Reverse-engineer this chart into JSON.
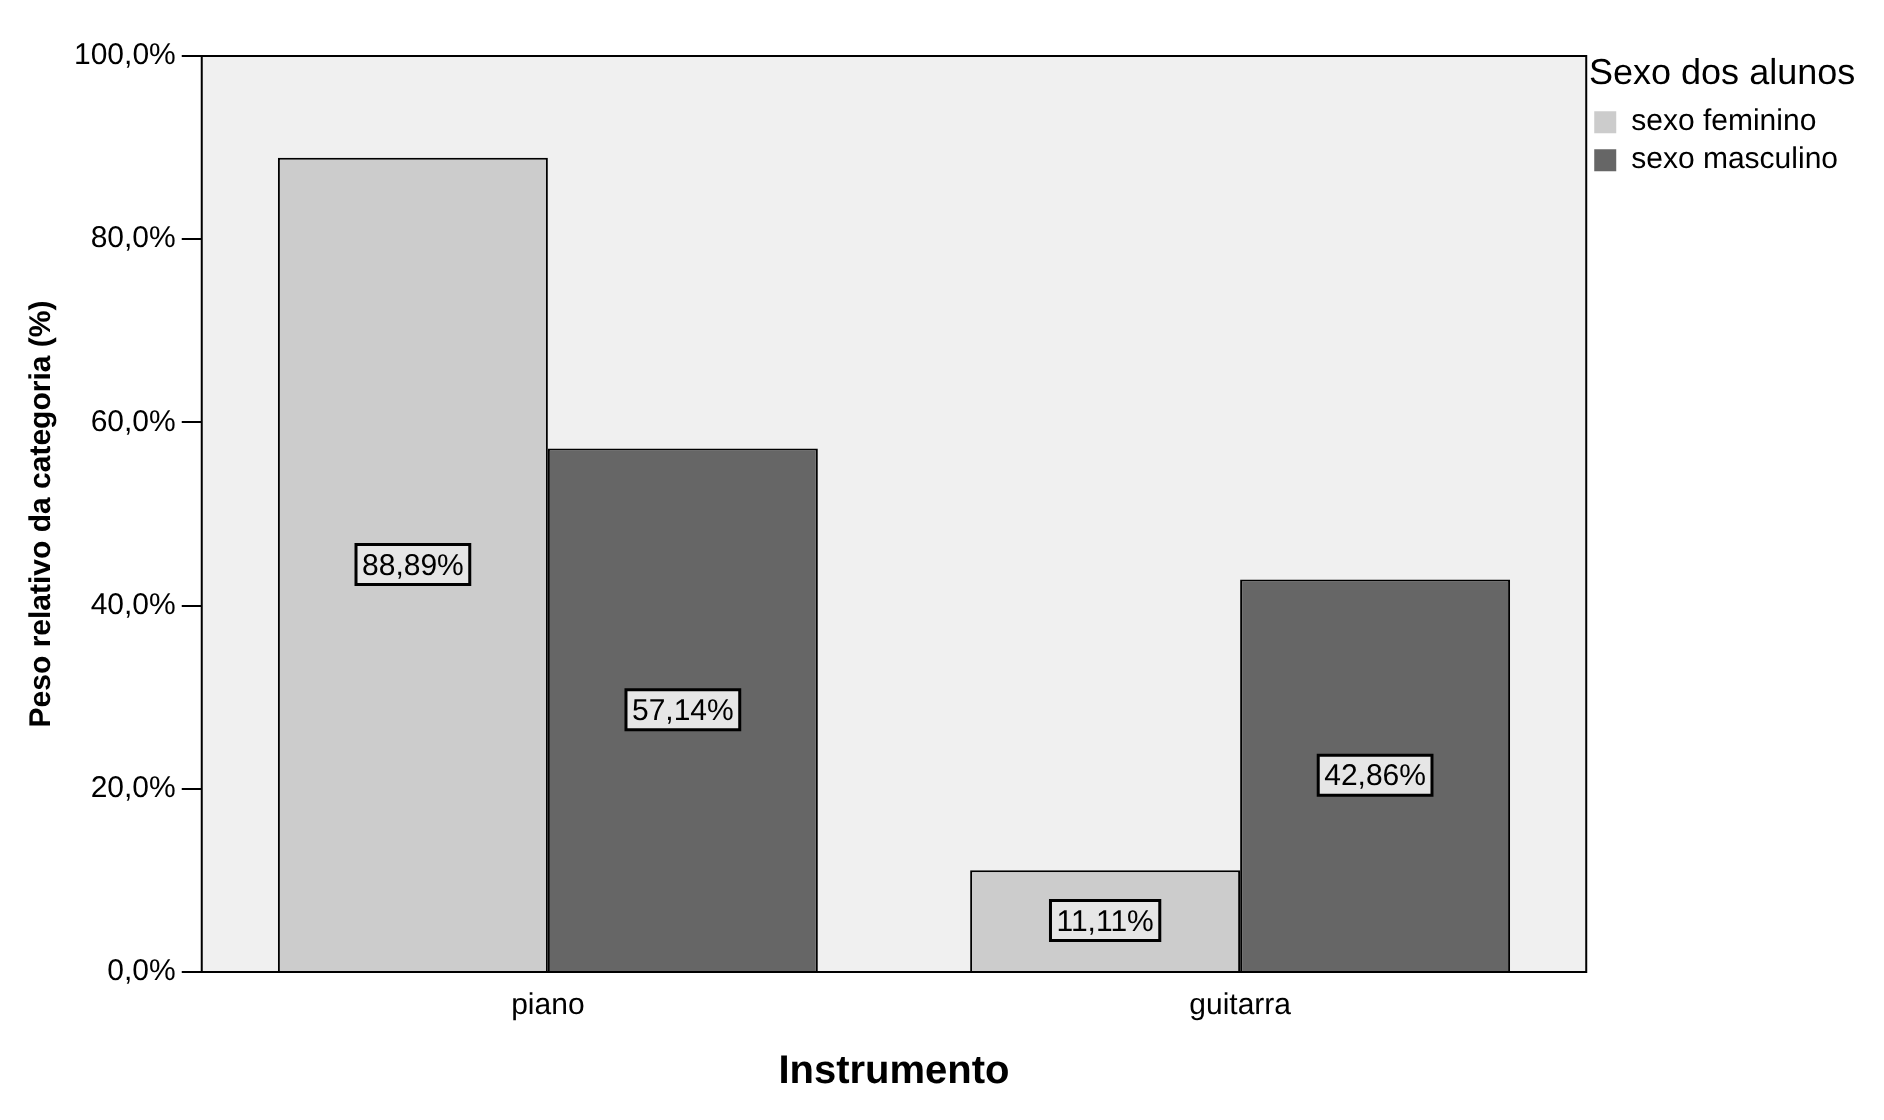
{
  "chart_data": {
    "type": "bar",
    "xlabel": "Instrumento",
    "ylabel": "Peso relativo da categoria (%)",
    "legend_title": "Sexo dos alunos",
    "categories": [
      "piano",
      "guitarra"
    ],
    "series": [
      {
        "name": "sexo feminino",
        "color": "#cccccc",
        "values": [
          88.89,
          11.11
        ],
        "value_labels": [
          "88,89%",
          "11,11%"
        ]
      },
      {
        "name": "sexo masculino",
        "color": "#666666",
        "values": [
          57.14,
          42.86
        ],
        "value_labels": [
          "57,14%",
          "42,86%"
        ]
      }
    ],
    "ylim": [
      0,
      100
    ],
    "yticks": [
      {
        "value": 0,
        "label": "0,0%"
      },
      {
        "value": 20,
        "label": "20,0%"
      },
      {
        "value": 40,
        "label": "40,0%"
      },
      {
        "value": 60,
        "label": "60,0%"
      },
      {
        "value": 80,
        "label": "80,0%"
      },
      {
        "value": 100,
        "label": "100,0%"
      }
    ],
    "grid": false,
    "legend": "top right"
  }
}
